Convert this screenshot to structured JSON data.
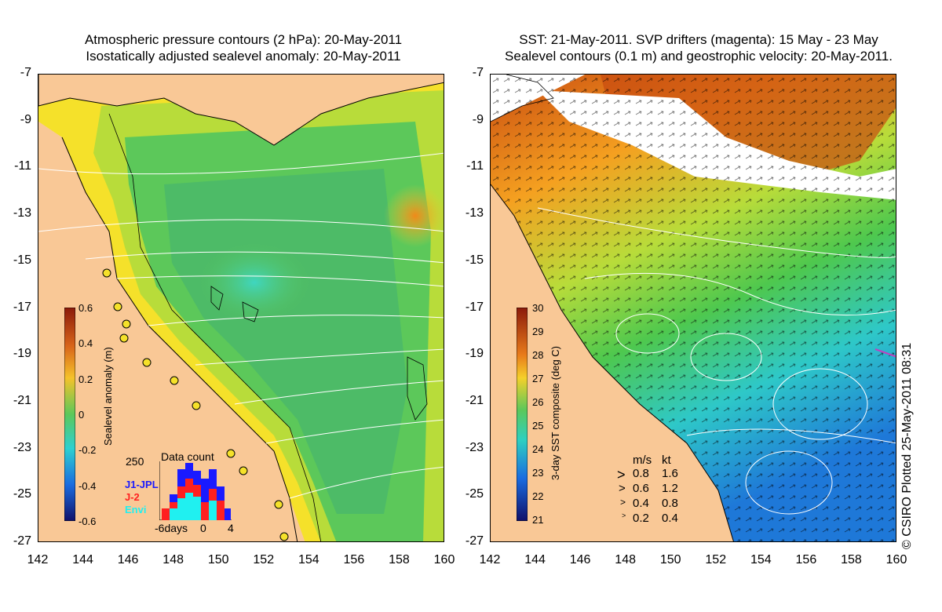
{
  "left": {
    "title_line1": "Atmospheric pressure contours (2 hPa): 20-May-2011",
    "title_line2": "Isostatically adjusted sealevel anomaly: 20-May-2011",
    "colorbar": {
      "title": "Sealevel anomaly (m)",
      "ticks": [
        "0.6",
        "0.4",
        "0.2",
        "0",
        "-0.2",
        "-0.4",
        "-0.6"
      ]
    },
    "data_count": {
      "title": "Data count",
      "ymax": "250",
      "series": [
        {
          "name": "J1-JPL",
          "color": "#1a1aff"
        },
        {
          "name": "J-2",
          "color": "#ff2020"
        },
        {
          "name": "Envi",
          "color": "#20f0f0"
        }
      ],
      "x_ticks": [
        "-6days",
        "0",
        "4"
      ]
    }
  },
  "right": {
    "title_line1": "SST: 21-May-2011. SVP drifters (magenta): 15 May - 23 May",
    "title_line2": "Sealevel contours (0.1 m) and geostrophic velocity: 20-May-2011.",
    "colorbar": {
      "title": "3-day SST composite (deg C)",
      "ticks": [
        "30",
        "29",
        "28",
        "27",
        "26",
        "25",
        "24",
        "23",
        "22",
        "21"
      ]
    },
    "velocity_legend": {
      "header_ms": "m/s",
      "header_kt": "kt",
      "rows": [
        {
          "ms": "0.8",
          "kt": "1.6"
        },
        {
          "ms": "0.6",
          "kt": "1.2"
        },
        {
          "ms": "0.4",
          "kt": "0.8"
        },
        {
          "ms": "0.2",
          "kt": "0.4"
        }
      ]
    }
  },
  "axes": {
    "lat_ticks": [
      "-7",
      "-9",
      "-11",
      "-13",
      "-15",
      "-17",
      "-19",
      "-21",
      "-23",
      "-25",
      "-27"
    ],
    "lon_ticks": [
      "142",
      "144",
      "146",
      "148",
      "150",
      "152",
      "154",
      "156",
      "158",
      "160"
    ]
  },
  "credit": "© CSIRO Plotted 25-May-2011 08:31",
  "colors": {
    "land": "#f9c896",
    "sla_green": "#4ec84e",
    "sla_yellow": "#f5e12a",
    "sst_warm": "#c84a10",
    "sst_cool": "#1e78d8"
  }
}
